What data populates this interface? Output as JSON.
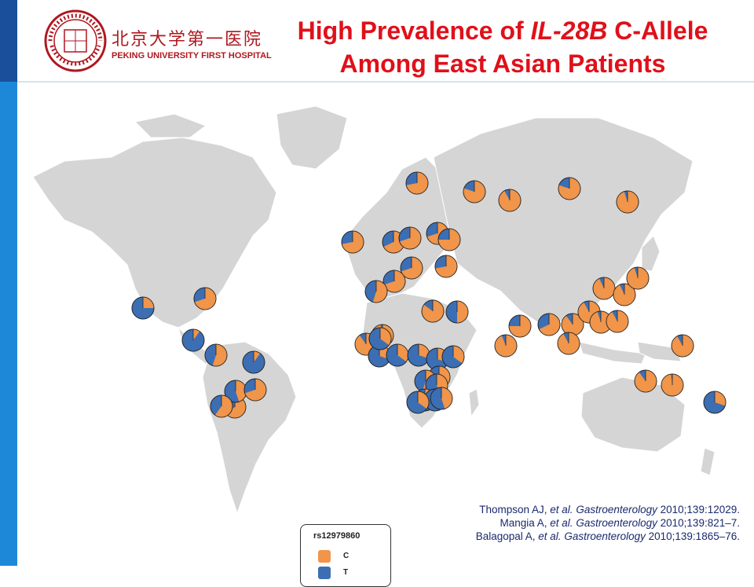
{
  "header": {
    "logo_cn": "北京大学第一医院",
    "logo_en": "PEKING UNIVERSITY FIRST HOSPITAL",
    "title_line1_prefix": "High Prevalence of ",
    "title_line1_italic": "IL-28B",
    "title_line1_suffix": " C-Allele",
    "title_line2": "Among East Asian Patients"
  },
  "legend": {
    "title": "rs12979860",
    "items": [
      {
        "label": "C",
        "color": "#f0954a"
      },
      {
        "label": "T",
        "color": "#3c6eb4"
      }
    ]
  },
  "colors": {
    "C": "#f0954a",
    "T": "#3c6eb4",
    "land": "#d5d5d5",
    "title": "#e0101a",
    "brand_blue": "#1e88d8"
  },
  "map_markers": [
    {
      "region": "Mexico",
      "c": 0.25
    },
    {
      "region": "United States East",
      "c": 0.7
    },
    {
      "region": "Central America",
      "c": 0.1
    },
    {
      "region": "Venezuela",
      "c": 0.55
    },
    {
      "region": "Brazil North",
      "c": 0.1
    },
    {
      "region": "Peru",
      "c": 0.65
    },
    {
      "region": "Bolivia",
      "c": 0.45
    },
    {
      "region": "Brazil South",
      "c": 0.7
    },
    {
      "region": "Chile",
      "c": 0.6
    },
    {
      "region": "Scandinavia",
      "c": 0.72
    },
    {
      "region": "Russia West",
      "c": 0.8
    },
    {
      "region": "Russia Central",
      "c": 0.92
    },
    {
      "region": "Siberia",
      "c": 0.8
    },
    {
      "region": "Russia East",
      "c": 0.95
    },
    {
      "region": "Ireland",
      "c": 0.72
    },
    {
      "region": "Western Europe",
      "c": 0.68
    },
    {
      "region": "Germany",
      "c": 0.7
    },
    {
      "region": "Baltics",
      "c": 0.7
    },
    {
      "region": "Ukraine",
      "c": 0.75
    },
    {
      "region": "Hungary",
      "c": 0.7
    },
    {
      "region": "Balkans",
      "c": 0.72
    },
    {
      "region": "Italy",
      "c": 0.7
    },
    {
      "region": "Iberia",
      "c": 0.55
    },
    {
      "region": "Egypt",
      "c": 0.85
    },
    {
      "region": "Arabia",
      "c": 0.5
    },
    {
      "region": "Pakistan",
      "c": 0.75
    },
    {
      "region": "India",
      "c": 0.68
    },
    {
      "region": "Tibet",
      "c": 0.9
    },
    {
      "region": "China West",
      "c": 0.92
    },
    {
      "region": "China Central",
      "c": 0.95
    },
    {
      "region": "China North",
      "c": 0.93
    },
    {
      "region": "Korea",
      "c": 0.93
    },
    {
      "region": "Japan",
      "c": 0.95
    },
    {
      "region": "Japan South",
      "c": 0.92
    },
    {
      "region": "China South",
      "c": 0.92
    },
    {
      "region": "Taiwan",
      "c": 0.94
    },
    {
      "region": "Philippines",
      "c": 0.92
    },
    {
      "region": "Southeast Asia",
      "c": 0.9
    },
    {
      "region": "Micronesia",
      "c": 0.98
    },
    {
      "region": "New Guinea",
      "c": 0.3
    },
    {
      "region": "Melanesia",
      "c": 0.9
    },
    {
      "region": "Polynesia",
      "c": 0.97
    },
    {
      "region": "West Africa 1",
      "c": 0.3
    },
    {
      "region": "West Africa 2",
      "c": 0.35
    },
    {
      "region": "West Africa 3",
      "c": 0.3
    },
    {
      "region": "Central Africa",
      "c": 0.3
    },
    {
      "region": "Sudan",
      "c": 0.35
    },
    {
      "region": "Ethiopia",
      "c": 0.5
    },
    {
      "region": "Horn of Africa",
      "c": 0.55
    },
    {
      "region": "Kenya",
      "c": 0.45
    },
    {
      "region": "Congo",
      "c": 0.3
    },
    {
      "region": "Tanzania",
      "c": 0.4
    },
    {
      "region": "Zambia",
      "c": 0.35
    },
    {
      "region": "Southern Africa",
      "c": 0.35
    },
    {
      "region": "Mozambique",
      "c": 0.45
    }
  ],
  "references": [
    {
      "authors": "Thompson AJ, ",
      "etal": "et al.",
      "journal": "Gastroenterology",
      "cite": " 2010;139:12029."
    },
    {
      "authors": "Mangia A, ",
      "etal": "et al.",
      "journal": "Gastroenterology",
      "cite": " 2010;139:821–7."
    },
    {
      "authors": "Balagopal A, ",
      "etal": "et al.",
      "journal": "Gastroenterology",
      "cite": " 2010;139:1865–76."
    }
  ]
}
